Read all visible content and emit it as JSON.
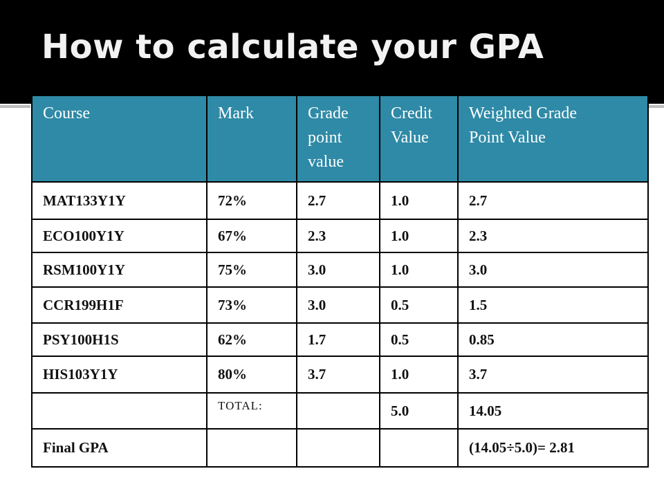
{
  "title": "How to calculate your GPA",
  "table": {
    "headers": [
      "Course",
      "Mark",
      "Grade point value",
      "Credit Value",
      "Weighted Grade Point Value"
    ],
    "header_lines": [
      [
        "Course"
      ],
      [
        "Mark"
      ],
      [
        "Grade",
        "point",
        "value"
      ],
      [
        "Credit",
        "Value"
      ],
      [
        "Weighted Grade",
        "Point Value"
      ]
    ],
    "rows": [
      [
        "MAT133Y1Y",
        "72%",
        "2.7",
        "1.0",
        "2.7"
      ],
      [
        "ECO100Y1Y",
        "67%",
        "2.3",
        "1.0",
        "2.3"
      ],
      [
        "RSM100Y1Y",
        "75%",
        "3.0",
        "1.0",
        "3.0"
      ],
      [
        "CCR199H1F",
        "73%",
        "3.0",
        "0.5",
        "1.5"
      ],
      [
        "PSY100H1S",
        "62%",
        "1.7",
        "0.5",
        "0.85"
      ],
      [
        "HIS103Y1Y",
        "80%",
        "3.7",
        "1.0",
        "3.7"
      ]
    ],
    "total_row": [
      "",
      "TOTAL:",
      "",
      "5.0",
      "14.05"
    ],
    "final_row": [
      "Final GPA",
      "",
      "",
      "",
      "(14.05÷5.0)= 2.81"
    ]
  },
  "colors": {
    "header_bg": "#2e8aa6",
    "title_bar": "#000000"
  }
}
